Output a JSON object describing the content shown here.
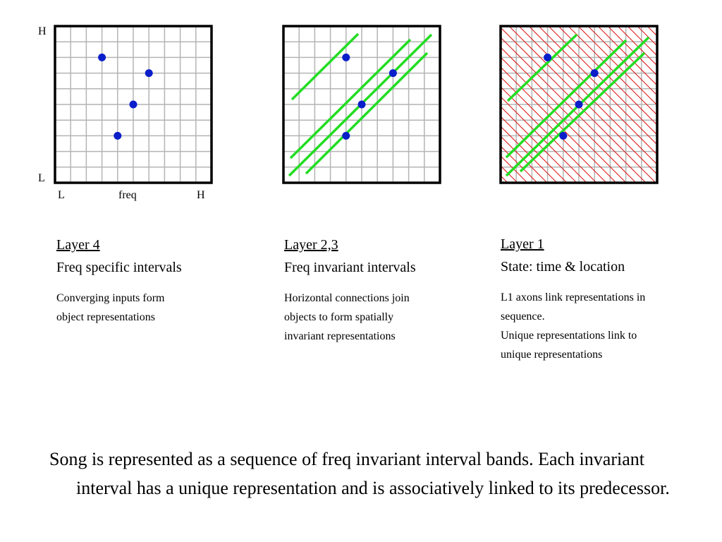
{
  "panel1": {
    "axis": {
      "y_high": "H",
      "y_low": "L",
      "x_low": "L",
      "x_label": "freq",
      "x_high": "H"
    },
    "dots": [
      [
        3,
        8
      ],
      [
        6,
        7
      ],
      [
        5,
        5
      ],
      [
        4,
        3
      ]
    ]
  },
  "panel2": {
    "dots": [
      [
        4,
        8
      ],
      [
        7,
        7
      ],
      [
        5,
        5
      ],
      [
        4,
        3
      ]
    ]
  },
  "panel3": {
    "dots": [
      [
        3,
        8
      ],
      [
        6,
        7
      ],
      [
        5,
        5
      ],
      [
        4,
        3
      ]
    ]
  },
  "layers": [
    {
      "title": "Layer 4",
      "subtitle": "Freq specific intervals",
      "desc_lines": [
        "Converging inputs form",
        "object representations"
      ]
    },
    {
      "title": "Layer 2,3",
      "subtitle": "Freq invariant intervals",
      "desc_lines": [
        "Horizontal connections join",
        "objects to form spatially",
        "invariant representations"
      ]
    },
    {
      "title": "Layer 1",
      "subtitle": "State: time & location",
      "desc_lines": [
        "L1 axons link representations in",
        "sequence.",
        "Unique representations link to",
        "unique representations"
      ]
    }
  ],
  "summary": {
    "text": "Song is represented as a sequence of freq invariant interval bands. Each invariant interval has a unique representation and is associatively linked to its predecessor."
  },
  "colors": {
    "dot": "#0a1fc9",
    "grid": "#b4b4b4",
    "border": "#000000",
    "green": "#22dd22",
    "red": "#dd1111"
  }
}
